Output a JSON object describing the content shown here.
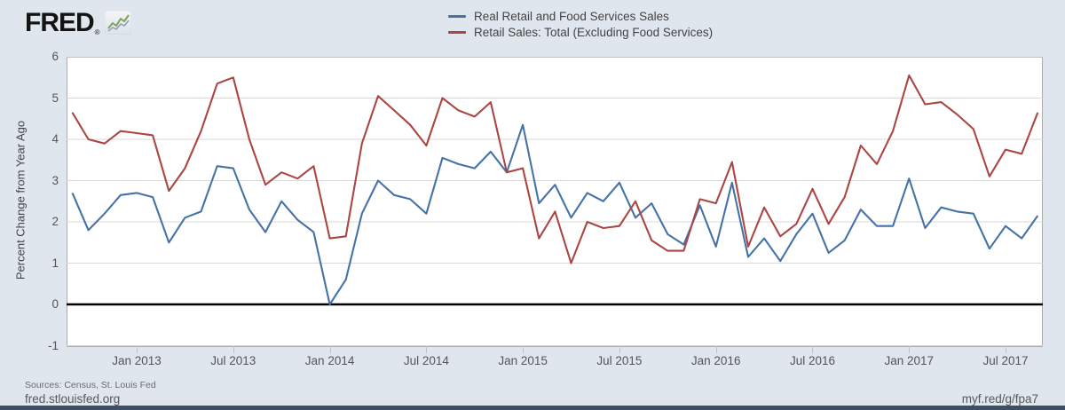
{
  "header": {
    "logo_text": "FRED",
    "logo_registered": "®",
    "sources": "Sources: Census, St. Louis Fed",
    "site_link": "fred.stlouisfed.org",
    "short_link": "myf.red/g/fpa7"
  },
  "colors": {
    "background": "#dfe6ee",
    "plot_background": "#ffffff",
    "gridline": "#d9d9d9",
    "zero_line": "#000000",
    "series_blue": "#4572a7",
    "series_red": "#aa4643",
    "bottom_bar": "#3e4e66"
  },
  "chart_data": {
    "type": "line",
    "title": "",
    "xlabel": "",
    "ylabel": "Percent Change from Year Ago",
    "ylim": [
      -1,
      6
    ],
    "grid": true,
    "legend_position": "top-center",
    "y_ticks": [
      6,
      5,
      4,
      3,
      2,
      1,
      0,
      -1
    ],
    "x_start": "2012-09",
    "x_end": "2017-09",
    "x_unit": "month",
    "x_ticks": [
      {
        "label": "Jan 2013",
        "month_index": 4
      },
      {
        "label": "Jul 2013",
        "month_index": 10
      },
      {
        "label": "Jan 2014",
        "month_index": 16
      },
      {
        "label": "Jul 2014",
        "month_index": 22
      },
      {
        "label": "Jan 2015",
        "month_index": 28
      },
      {
        "label": "Jul 2015",
        "month_index": 34
      },
      {
        "label": "Jan 2016",
        "month_index": 40
      },
      {
        "label": "Jul 2016",
        "month_index": 46
      },
      {
        "label": "Jan 2017",
        "month_index": 52
      },
      {
        "label": "Jul 2017",
        "month_index": 58
      }
    ],
    "series": [
      {
        "name": "Real Retail and Food Services Sales",
        "color": "#4572a7",
        "values": [
          2.7,
          1.8,
          2.2,
          2.65,
          2.7,
          2.6,
          1.5,
          2.1,
          2.25,
          3.35,
          3.3,
          2.3,
          1.75,
          2.5,
          2.05,
          1.75,
          0.0,
          0.6,
          2.2,
          3.0,
          2.65,
          2.55,
          2.2,
          3.55,
          3.4,
          3.3,
          3.7,
          3.2,
          4.35,
          2.45,
          2.9,
          2.1,
          2.7,
          2.5,
          2.95,
          2.1,
          2.45,
          1.7,
          1.45,
          2.4,
          1.4,
          2.95,
          1.15,
          1.6,
          1.05,
          1.7,
          2.2,
          1.25,
          1.55,
          2.3,
          1.9,
          1.9,
          3.05,
          1.85,
          2.35,
          2.25,
          2.2,
          1.35,
          1.9,
          1.6,
          2.15
        ]
      },
      {
        "name": "Retail Sales: Total (Excluding Food Services)",
        "color": "#aa4643",
        "values": [
          4.65,
          4.0,
          3.9,
          4.2,
          4.15,
          4.1,
          2.75,
          3.3,
          4.2,
          5.35,
          5.5,
          4.0,
          2.9,
          3.2,
          3.05,
          3.35,
          1.6,
          1.65,
          3.9,
          5.05,
          4.7,
          4.35,
          3.85,
          5.0,
          4.7,
          4.55,
          4.9,
          3.2,
          3.3,
          1.6,
          2.25,
          1.0,
          2.0,
          1.85,
          1.9,
          2.5,
          1.55,
          1.3,
          1.3,
          2.55,
          2.45,
          3.45,
          1.4,
          2.35,
          1.65,
          1.95,
          2.8,
          1.95,
          2.6,
          3.85,
          3.4,
          4.2,
          5.55,
          4.85,
          4.9,
          4.6,
          4.25,
          3.1,
          3.75,
          3.65,
          4.65
        ]
      }
    ]
  }
}
